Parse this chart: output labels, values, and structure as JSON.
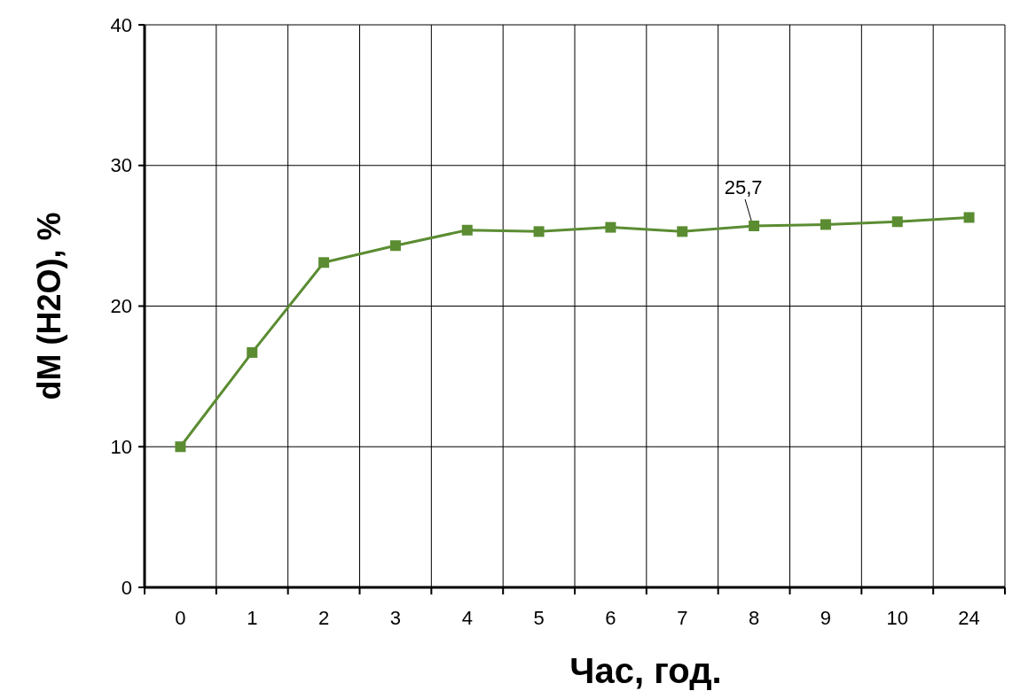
{
  "chart_data": {
    "type": "line",
    "xlabel": "Час, год.",
    "ylabel": "dM (H2O), %",
    "categories": [
      "0",
      "1",
      "2",
      "3",
      "4",
      "5",
      "6",
      "7",
      "8",
      "9",
      "10",
      "24"
    ],
    "series": [
      {
        "color": "#5b8c32",
        "values": [
          10,
          16.7,
          23.1,
          24.3,
          25.4,
          25.3,
          25.6,
          25.3,
          25.7,
          25.8,
          26.0,
          26.3
        ]
      }
    ],
    "ylim": [
      0,
      40
    ],
    "yticks": [
      0,
      10,
      20,
      30,
      40
    ],
    "grid": true,
    "marker": "square",
    "line_style": "solid",
    "annotations": [
      {
        "text": "25,7",
        "x": "8",
        "y": 25.7
      }
    ]
  }
}
